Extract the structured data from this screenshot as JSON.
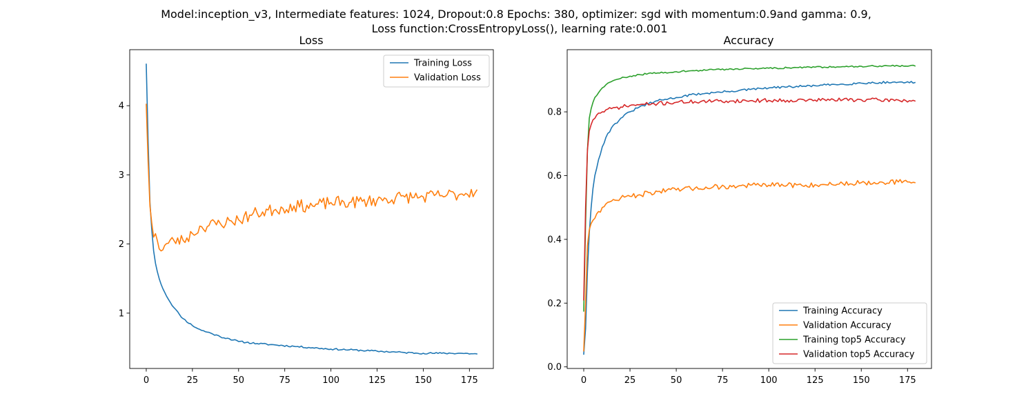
{
  "suptitle": {
    "line1": "Model:inception_v3, Intermediate features: 1024, Dropout:0.8 Epochs: 380, optimizer: sgd with momentum:0.9and gamma: 0.9,",
    "line2": "Loss function:CrossEntropyLoss(), learning rate:0.001"
  },
  "colors": {
    "blue": "#1f77b4",
    "orange": "#ff7f0e",
    "green": "#2ca02c",
    "red": "#d62728"
  },
  "chart_data": [
    {
      "type": "line",
      "title": "Loss",
      "xlabel": "",
      "ylabel": "",
      "xlim": [
        -8.95,
        187.95
      ],
      "ylim": [
        0.2,
        4.81
      ],
      "xticks": [
        0,
        25,
        50,
        75,
        100,
        125,
        150,
        175
      ],
      "yticks": [
        1,
        2,
        3,
        4
      ],
      "grid": false,
      "legend_position": "top-right",
      "series": [
        {
          "name": "Training Loss",
          "color": "#1f77b4",
          "anchors": [
            [
              0,
              4.6
            ],
            [
              1,
              3.5
            ],
            [
              2,
              2.6
            ],
            [
              3,
              2.2
            ],
            [
              4,
              1.9
            ],
            [
              5,
              1.72
            ],
            [
              6,
              1.6
            ],
            [
              7,
              1.5
            ],
            [
              8,
              1.42
            ],
            [
              10,
              1.3
            ],
            [
              12,
              1.2
            ],
            [
              15,
              1.08
            ],
            [
              18,
              0.98
            ],
            [
              20,
              0.92
            ],
            [
              25,
              0.82
            ],
            [
              30,
              0.75
            ],
            [
              35,
              0.71
            ],
            [
              40,
              0.66
            ],
            [
              45,
              0.63
            ],
            [
              50,
              0.59
            ],
            [
              60,
              0.56
            ],
            [
              70,
              0.54
            ],
            [
              80,
              0.52
            ],
            [
              90,
              0.5
            ],
            [
              100,
              0.48
            ],
            [
              110,
              0.47
            ],
            [
              125,
              0.45
            ],
            [
              140,
              0.43
            ],
            [
              150,
              0.42
            ],
            [
              160,
              0.42
            ],
            [
              170,
              0.42
            ],
            [
              179,
              0.41
            ]
          ],
          "noise": 0.012,
          "seed": 11
        },
        {
          "name": "Validation Loss",
          "color": "#ff7f0e",
          "anchors": [
            [
              0,
              4.02
            ],
            [
              1,
              3.2
            ],
            [
              2,
              2.55
            ],
            [
              3,
              2.3
            ],
            [
              4,
              2.1
            ],
            [
              5,
              2.15
            ],
            [
              6,
              2.05
            ],
            [
              8,
              1.9
            ],
            [
              10,
              1.98
            ],
            [
              15,
              2.05
            ],
            [
              20,
              2.05
            ],
            [
              25,
              2.15
            ],
            [
              30,
              2.25
            ],
            [
              40,
              2.3
            ],
            [
              50,
              2.35
            ],
            [
              60,
              2.45
            ],
            [
              70,
              2.5
            ],
            [
              80,
              2.55
            ],
            [
              90,
              2.55
            ],
            [
              100,
              2.6
            ],
            [
              110,
              2.6
            ],
            [
              120,
              2.62
            ],
            [
              130,
              2.65
            ],
            [
              140,
              2.68
            ],
            [
              150,
              2.68
            ],
            [
              160,
              2.7
            ],
            [
              170,
              2.72
            ],
            [
              179,
              2.78
            ]
          ],
          "noise": 0.09,
          "seed": 23
        }
      ]
    },
    {
      "type": "line",
      "title": "Accuracy",
      "xlabel": "",
      "ylabel": "",
      "xlim": [
        -8.95,
        187.95
      ],
      "ylim": [
        -0.005,
        0.995
      ],
      "xticks": [
        0,
        25,
        50,
        75,
        100,
        125,
        150,
        175
      ],
      "yticks": [
        0.0,
        0.2,
        0.4,
        0.6,
        0.8
      ],
      "grid": false,
      "legend_position": "bottom-right",
      "series": [
        {
          "name": "Training Accuracy",
          "color": "#1f77b4",
          "anchors": [
            [
              0,
              0.04
            ],
            [
              1,
              0.12
            ],
            [
              2,
              0.3
            ],
            [
              3,
              0.42
            ],
            [
              4,
              0.5
            ],
            [
              5,
              0.56
            ],
            [
              6,
              0.6
            ],
            [
              8,
              0.65
            ],
            [
              10,
              0.69
            ],
            [
              12,
              0.72
            ],
            [
              15,
              0.75
            ],
            [
              20,
              0.78
            ],
            [
              25,
              0.8
            ],
            [
              30,
              0.815
            ],
            [
              35,
              0.825
            ],
            [
              40,
              0.835
            ],
            [
              50,
              0.845
            ],
            [
              60,
              0.855
            ],
            [
              70,
              0.86
            ],
            [
              80,
              0.865
            ],
            [
              90,
              0.87
            ],
            [
              100,
              0.875
            ],
            [
              110,
              0.878
            ],
            [
              125,
              0.882
            ],
            [
              140,
              0.887
            ],
            [
              150,
              0.89
            ],
            [
              160,
              0.892
            ],
            [
              170,
              0.893
            ],
            [
              179,
              0.892
            ]
          ],
          "noise": 0.0035,
          "seed": 31
        },
        {
          "name": "Validation Accuracy",
          "color": "#ff7f0e",
          "anchors": [
            [
              0,
              0.05
            ],
            [
              1,
              0.2
            ],
            [
              2,
              0.38
            ],
            [
              3,
              0.43
            ],
            [
              4,
              0.45
            ],
            [
              5,
              0.46
            ],
            [
              7,
              0.48
            ],
            [
              10,
              0.5
            ],
            [
              15,
              0.52
            ],
            [
              20,
              0.53
            ],
            [
              25,
              0.535
            ],
            [
              30,
              0.54
            ],
            [
              40,
              0.55
            ],
            [
              50,
              0.555
            ],
            [
              60,
              0.56
            ],
            [
              70,
              0.565
            ],
            [
              80,
              0.565
            ],
            [
              90,
              0.57
            ],
            [
              100,
              0.57
            ],
            [
              110,
              0.57
            ],
            [
              120,
              0.57
            ],
            [
              130,
              0.572
            ],
            [
              140,
              0.575
            ],
            [
              150,
              0.578
            ],
            [
              160,
              0.58
            ],
            [
              170,
              0.58
            ],
            [
              179,
              0.578
            ]
          ],
          "noise": 0.008,
          "seed": 47
        },
        {
          "name": "Training top5 Accuracy",
          "color": "#2ca02c",
          "anchors": [
            [
              0,
              0.175
            ],
            [
              1,
              0.45
            ],
            [
              2,
              0.68
            ],
            [
              3,
              0.78
            ],
            [
              4,
              0.81
            ],
            [
              5,
              0.83
            ],
            [
              6,
              0.845
            ],
            [
              8,
              0.86
            ],
            [
              10,
              0.875
            ],
            [
              12,
              0.885
            ],
            [
              15,
              0.895
            ],
            [
              20,
              0.905
            ],
            [
              25,
              0.912
            ],
            [
              30,
              0.917
            ],
            [
              40,
              0.922
            ],
            [
              50,
              0.926
            ],
            [
              60,
              0.929
            ],
            [
              70,
              0.932
            ],
            [
              80,
              0.934
            ],
            [
              90,
              0.936
            ],
            [
              100,
              0.937
            ],
            [
              110,
              0.938
            ],
            [
              125,
              0.94
            ],
            [
              140,
              0.942
            ],
            [
              150,
              0.943
            ],
            [
              160,
              0.944
            ],
            [
              170,
              0.944
            ],
            [
              179,
              0.944
            ]
          ],
          "noise": 0.0025,
          "seed": 59
        },
        {
          "name": "Validation top5 Accuracy",
          "color": "#d62728",
          "anchors": [
            [
              0,
              0.21
            ],
            [
              1,
              0.5
            ],
            [
              2,
              0.68
            ],
            [
              3,
              0.74
            ],
            [
              4,
              0.76
            ],
            [
              5,
              0.775
            ],
            [
              7,
              0.79
            ],
            [
              10,
              0.8
            ],
            [
              15,
              0.81
            ],
            [
              20,
              0.815
            ],
            [
              25,
              0.82
            ],
            [
              30,
              0.822
            ],
            [
              40,
              0.826
            ],
            [
              50,
              0.83
            ],
            [
              60,
              0.832
            ],
            [
              70,
              0.833
            ],
            [
              80,
              0.834
            ],
            [
              90,
              0.835
            ],
            [
              100,
              0.836
            ],
            [
              110,
              0.836
            ],
            [
              125,
              0.837
            ],
            [
              140,
              0.838
            ],
            [
              150,
              0.838
            ],
            [
              160,
              0.837
            ],
            [
              170,
              0.837
            ],
            [
              179,
              0.834
            ]
          ],
          "noise": 0.006,
          "seed": 71
        }
      ]
    }
  ]
}
